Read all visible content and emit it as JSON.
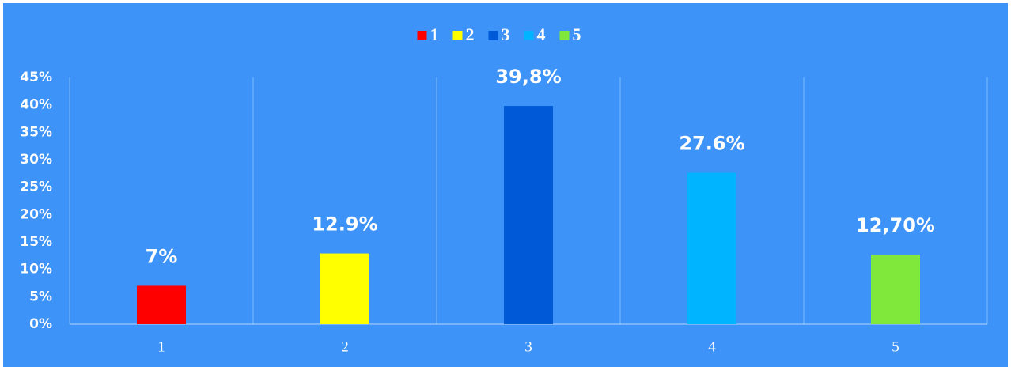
{
  "chart_data": {
    "type": "bar",
    "categories": [
      "1",
      "2",
      "3",
      "4",
      "5"
    ],
    "values": [
      7,
      12.9,
      39.8,
      27.6,
      12.7
    ],
    "value_labels": [
      "7%",
      "12.9%",
      "39,8%",
      "27.6%",
      "12,70%"
    ],
    "colors": [
      "#ff0000",
      "#ffff00",
      "#0059d6",
      "#00b4ff",
      "#80e83a"
    ],
    "ylim": [
      0,
      45
    ],
    "yticks": [
      {
        "value": 0,
        "label": "0%"
      },
      {
        "value": 5,
        "label": "5%"
      },
      {
        "value": 10,
        "label": "10%"
      },
      {
        "value": 15,
        "label": "15%"
      },
      {
        "value": 20,
        "label": "20%"
      },
      {
        "value": 25,
        "label": "25%"
      },
      {
        "value": 30,
        "label": "30%"
      },
      {
        "value": 35,
        "label": "35%"
      },
      {
        "value": 40,
        "label": "40%"
      },
      {
        "value": 45,
        "label": "45%"
      }
    ],
    "legend": "top"
  }
}
